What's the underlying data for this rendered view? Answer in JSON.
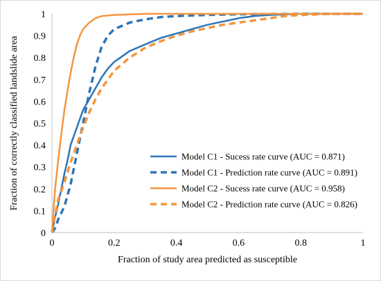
{
  "chart_data": {
    "type": "line",
    "title": "",
    "xlabel": "Fraction of study area predicted as susceptible",
    "ylabel": "Fraction of correctly classified landslide area",
    "xlim": [
      0,
      1
    ],
    "ylim": [
      0,
      1
    ],
    "x_ticks": [
      "0",
      "0.2",
      "0.4",
      "0.6",
      "0.8",
      "1"
    ],
    "x_tick_values": [
      0,
      0.2,
      0.4,
      0.6,
      0.8,
      1
    ],
    "y_ticks": [
      "0",
      "0.1",
      "0.2",
      "0.3",
      "0.4",
      "0.5",
      "0.6",
      "0.7",
      "0.8",
      "0.9",
      "1"
    ],
    "y_tick_values": [
      0,
      0.1,
      0.2,
      0.3,
      0.4,
      0.5,
      0.6,
      0.7,
      0.8,
      0.9,
      1
    ],
    "grid": false,
    "legend_position": "bottom-right",
    "series": [
      {
        "name": "Model C1 - Sucess rate curve (AUC = 0.871)",
        "color": "#2E75B6",
        "dash": "solid",
        "points": [
          [
            0,
            0
          ],
          [
            0.01,
            0.07
          ],
          [
            0.02,
            0.13
          ],
          [
            0.03,
            0.2
          ],
          [
            0.04,
            0.27
          ],
          [
            0.05,
            0.33
          ],
          [
            0.06,
            0.4
          ],
          [
            0.08,
            0.48
          ],
          [
            0.1,
            0.56
          ],
          [
            0.12,
            0.61
          ],
          [
            0.14,
            0.66
          ],
          [
            0.16,
            0.71
          ],
          [
            0.18,
            0.75
          ],
          [
            0.2,
            0.78
          ],
          [
            0.22,
            0.8
          ],
          [
            0.25,
            0.83
          ],
          [
            0.3,
            0.86
          ],
          [
            0.35,
            0.89
          ],
          [
            0.4,
            0.91
          ],
          [
            0.45,
            0.93
          ],
          [
            0.5,
            0.95
          ],
          [
            0.55,
            0.965
          ],
          [
            0.6,
            0.98
          ],
          [
            0.65,
            0.99
          ],
          [
            0.7,
            0.995
          ],
          [
            0.8,
            1
          ],
          [
            0.9,
            1
          ],
          [
            1,
            1
          ]
        ]
      },
      {
        "name": "Model C1 - Prediction rate curve (AUC = 0.891)",
        "color": "#2E75B6",
        "dash": "dashed",
        "points": [
          [
            0,
            0
          ],
          [
            0.01,
            0.02
          ],
          [
            0.02,
            0.06
          ],
          [
            0.04,
            0.12
          ],
          [
            0.06,
            0.22
          ],
          [
            0.08,
            0.36
          ],
          [
            0.1,
            0.5
          ],
          [
            0.12,
            0.64
          ],
          [
            0.14,
            0.76
          ],
          [
            0.16,
            0.85
          ],
          [
            0.18,
            0.9
          ],
          [
            0.2,
            0.93
          ],
          [
            0.25,
            0.96
          ],
          [
            0.3,
            0.975
          ],
          [
            0.35,
            0.985
          ],
          [
            0.4,
            0.99
          ],
          [
            0.5,
            0.995
          ],
          [
            0.6,
            0.998
          ],
          [
            0.8,
            1
          ],
          [
            1,
            1
          ]
        ]
      },
      {
        "name": "Model C2 - Sucess rate curve (AUC = 0.958)",
        "color": "#F4953B",
        "dash": "solid",
        "points": [
          [
            0,
            0
          ],
          [
            0.005,
            0.1
          ],
          [
            0.01,
            0.2
          ],
          [
            0.02,
            0.33
          ],
          [
            0.03,
            0.45
          ],
          [
            0.04,
            0.56
          ],
          [
            0.05,
            0.65
          ],
          [
            0.06,
            0.73
          ],
          [
            0.07,
            0.8
          ],
          [
            0.08,
            0.86
          ],
          [
            0.09,
            0.9
          ],
          [
            0.1,
            0.93
          ],
          [
            0.12,
            0.96
          ],
          [
            0.14,
            0.98
          ],
          [
            0.16,
            0.99
          ],
          [
            0.2,
            0.995
          ],
          [
            0.3,
            1
          ],
          [
            0.5,
            1
          ],
          [
            0.8,
            1
          ],
          [
            1,
            1
          ]
        ]
      },
      {
        "name": "Model C2 - Prediction rate curve (AUC = 0.826)",
        "color": "#F4953B",
        "dash": "dashed",
        "points": [
          [
            0,
            0
          ],
          [
            0.01,
            0.08
          ],
          [
            0.02,
            0.15
          ],
          [
            0.04,
            0.23
          ],
          [
            0.06,
            0.32
          ],
          [
            0.08,
            0.4
          ],
          [
            0.1,
            0.48
          ],
          [
            0.12,
            0.55
          ],
          [
            0.14,
            0.61
          ],
          [
            0.16,
            0.66
          ],
          [
            0.18,
            0.7
          ],
          [
            0.2,
            0.74
          ],
          [
            0.25,
            0.8
          ],
          [
            0.3,
            0.845
          ],
          [
            0.35,
            0.875
          ],
          [
            0.4,
            0.9
          ],
          [
            0.45,
            0.92
          ],
          [
            0.5,
            0.935
          ],
          [
            0.55,
            0.95
          ],
          [
            0.6,
            0.96
          ],
          [
            0.65,
            0.97
          ],
          [
            0.7,
            0.98
          ],
          [
            0.75,
            0.99
          ],
          [
            0.8,
            0.995
          ],
          [
            0.9,
            1
          ],
          [
            1,
            1
          ]
        ]
      }
    ]
  }
}
